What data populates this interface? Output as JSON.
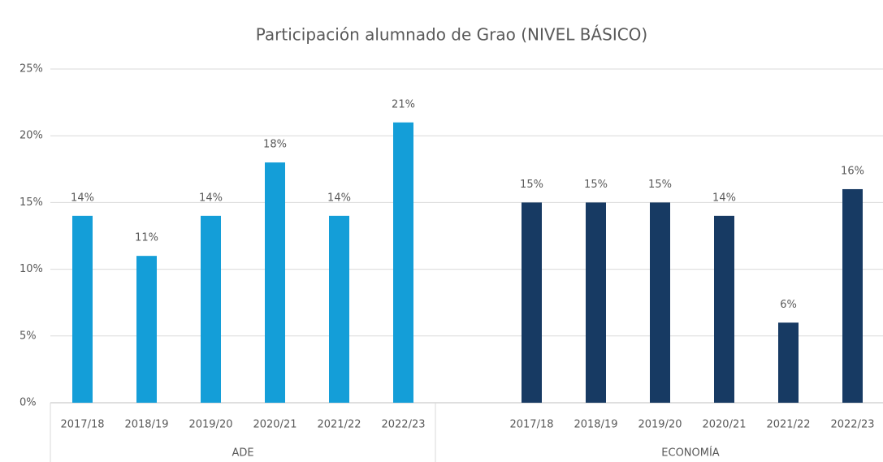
{
  "chart_data": {
    "type": "bar",
    "title": "Participación alumnado de Grao (NIVEL BÁSICO)",
    "categories": [
      "2017/18",
      "2018/19",
      "2019/20",
      "2020/21",
      "2021/22",
      "2022/23"
    ],
    "series": [
      {
        "name": "ADE",
        "color": "#149ed8",
        "values": [
          14,
          11,
          14,
          18,
          14,
          21
        ],
        "value_labels": [
          "14%",
          "11%",
          "14%",
          "18%",
          "14%",
          "21%"
        ]
      },
      {
        "name": "ECONOMÍA",
        "color": "#173a63",
        "values": [
          15,
          15,
          15,
          14,
          6,
          16
        ],
        "value_labels": [
          "15%",
          "15%",
          "15%",
          "14%",
          "6%",
          "16%"
        ]
      }
    ],
    "ylim": [
      0,
      25
    ],
    "yticks": [
      {
        "value": 0,
        "label": "0%"
      },
      {
        "value": 5,
        "label": "5%"
      },
      {
        "value": 10,
        "label": "10%"
      },
      {
        "value": 15,
        "label": "15%"
      },
      {
        "value": 20,
        "label": "20%"
      },
      {
        "value": 25,
        "label": "25%"
      }
    ],
    "grid": true
  }
}
